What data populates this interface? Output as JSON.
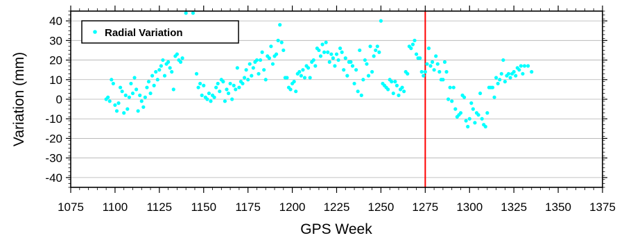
{
  "chart_data": {
    "type": "scatter",
    "xlabel": "GPS Week",
    "ylabel": "Variation (mm)",
    "xlim": [
      1075,
      1375
    ],
    "ylim": [
      -45,
      45
    ],
    "xticks": [
      1075,
      1100,
      1125,
      1150,
      1175,
      1200,
      1225,
      1250,
      1275,
      1300,
      1325,
      1350,
      1375
    ],
    "yticks": [
      -40,
      -30,
      -20,
      -10,
      0,
      10,
      20,
      30,
      40
    ],
    "grid": true,
    "legend": {
      "position": "top-left",
      "entries": [
        "Radial Variation"
      ]
    },
    "vertical_line": {
      "x": 1275,
      "color": "#ff0000"
    },
    "colors": {
      "points": "#00ffff",
      "vline": "#ff0000",
      "grid": "#b0b0b0"
    },
    "series": [
      {
        "name": "Radial Variation",
        "points": [
          [
            1095,
            0
          ],
          [
            1096,
            1
          ],
          [
            1097,
            -1
          ],
          [
            1098,
            10
          ],
          [
            1099,
            8
          ],
          [
            1100,
            -3
          ],
          [
            1101,
            -6
          ],
          [
            1102,
            -2
          ],
          [
            1103,
            6
          ],
          [
            1104,
            4
          ],
          [
            1105,
            -7
          ],
          [
            1106,
            2
          ],
          [
            1107,
            -5
          ],
          [
            1108,
            1
          ],
          [
            1109,
            8
          ],
          [
            1110,
            3
          ],
          [
            1111,
            11
          ],
          [
            1112,
            5
          ],
          [
            1113,
            -6
          ],
          [
            1114,
            2
          ],
          [
            1115,
            -1
          ],
          [
            1116,
            -4
          ],
          [
            1117,
            1
          ],
          [
            1118,
            6
          ],
          [
            1119,
            9
          ],
          [
            1120,
            3
          ],
          [
            1121,
            12
          ],
          [
            1122,
            7
          ],
          [
            1123,
            14
          ],
          [
            1124,
            10
          ],
          [
            1125,
            15
          ],
          [
            1126,
            17
          ],
          [
            1127,
            20
          ],
          [
            1128,
            12
          ],
          [
            1129,
            18
          ],
          [
            1130,
            19
          ],
          [
            1131,
            16
          ],
          [
            1132,
            14
          ],
          [
            1133,
            5
          ],
          [
            1134,
            22
          ],
          [
            1135,
            23
          ],
          [
            1136,
            20
          ],
          [
            1137,
            19
          ],
          [
            1138,
            21
          ],
          [
            1140,
            44
          ],
          [
            1144,
            44
          ],
          [
            1146,
            13
          ],
          [
            1147,
            6
          ],
          [
            1148,
            8
          ],
          [
            1149,
            2
          ],
          [
            1150,
            7
          ],
          [
            1151,
            1
          ],
          [
            1152,
            0
          ],
          [
            1153,
            3
          ],
          [
            1154,
            -1
          ],
          [
            1155,
            2
          ],
          [
            1156,
            1
          ],
          [
            1157,
            6
          ],
          [
            1158,
            8
          ],
          [
            1159,
            4
          ],
          [
            1160,
            10
          ],
          [
            1161,
            9
          ],
          [
            1162,
            -1
          ],
          [
            1163,
            5
          ],
          [
            1164,
            3
          ],
          [
            1165,
            8
          ],
          [
            1166,
            0
          ],
          [
            1167,
            7
          ],
          [
            1168,
            5
          ],
          [
            1169,
            16
          ],
          [
            1170,
            6
          ],
          [
            1171,
            9
          ],
          [
            1172,
            8
          ],
          [
            1173,
            11
          ],
          [
            1174,
            15
          ],
          [
            1175,
            10
          ],
          [
            1176,
            18
          ],
          [
            1177,
            12
          ],
          [
            1178,
            16
          ],
          [
            1179,
            19
          ],
          [
            1180,
            20
          ],
          [
            1181,
            13
          ],
          [
            1182,
            20
          ],
          [
            1183,
            24
          ],
          [
            1184,
            15
          ],
          [
            1185,
            10
          ],
          [
            1186,
            22
          ],
          [
            1187,
            21
          ],
          [
            1188,
            27
          ],
          [
            1189,
            18
          ],
          [
            1190,
            22
          ],
          [
            1191,
            23
          ],
          [
            1192,
            30
          ],
          [
            1193,
            38
          ],
          [
            1194,
            29
          ],
          [
            1195,
            25
          ],
          [
            1196,
            11
          ],
          [
            1197,
            11
          ],
          [
            1198,
            6
          ],
          [
            1199,
            5
          ],
          [
            1200,
            8
          ],
          [
            1201,
            9
          ],
          [
            1202,
            4
          ],
          [
            1203,
            13
          ],
          [
            1204,
            14
          ],
          [
            1205,
            12
          ],
          [
            1206,
            15
          ],
          [
            1207,
            11
          ],
          [
            1208,
            17
          ],
          [
            1209,
            16
          ],
          [
            1210,
            11
          ],
          [
            1211,
            19
          ],
          [
            1212,
            20
          ],
          [
            1213,
            17
          ],
          [
            1214,
            26
          ],
          [
            1215,
            25
          ],
          [
            1216,
            22
          ],
          [
            1217,
            28
          ],
          [
            1218,
            24
          ],
          [
            1219,
            29
          ],
          [
            1220,
            24
          ],
          [
            1221,
            19
          ],
          [
            1222,
            23
          ],
          [
            1223,
            21
          ],
          [
            1224,
            17
          ],
          [
            1225,
            23
          ],
          [
            1226,
            20
          ],
          [
            1227,
            26
          ],
          [
            1228,
            24
          ],
          [
            1229,
            15
          ],
          [
            1230,
            21
          ],
          [
            1231,
            12
          ],
          [
            1232,
            19
          ],
          [
            1233,
            19
          ],
          [
            1234,
            17
          ],
          [
            1235,
            8
          ],
          [
            1236,
            15
          ],
          [
            1237,
            4
          ],
          [
            1238,
            25
          ],
          [
            1239,
            2
          ],
          [
            1240,
            10
          ],
          [
            1241,
            20
          ],
          [
            1242,
            18
          ],
          [
            1243,
            12
          ],
          [
            1244,
            27
          ],
          [
            1245,
            14
          ],
          [
            1246,
            22
          ],
          [
            1247,
            25
          ],
          [
            1248,
            27
          ],
          [
            1249,
            24
          ],
          [
            1250,
            40
          ],
          [
            1251,
            8
          ],
          [
            1252,
            7
          ],
          [
            1253,
            6
          ],
          [
            1254,
            5
          ],
          [
            1255,
            10
          ],
          [
            1256,
            9
          ],
          [
            1257,
            3
          ],
          [
            1258,
            9
          ],
          [
            1259,
            7
          ],
          [
            1260,
            2
          ],
          [
            1261,
            5
          ],
          [
            1262,
            6
          ],
          [
            1263,
            4
          ],
          [
            1264,
            14
          ],
          [
            1265,
            13
          ],
          [
            1266,
            27
          ],
          [
            1267,
            26
          ],
          [
            1268,
            28
          ],
          [
            1269,
            30
          ],
          [
            1270,
            23
          ],
          [
            1271,
            21
          ],
          [
            1272,
            21
          ],
          [
            1273,
            14
          ],
          [
            1274,
            12
          ],
          [
            1275,
            14
          ],
          [
            1276,
            18
          ],
          [
            1277,
            26
          ],
          [
            1278,
            17
          ],
          [
            1279,
            19
          ],
          [
            1280,
            15
          ],
          [
            1281,
            22
          ],
          [
            1282,
            18
          ],
          [
            1283,
            14
          ],
          [
            1284,
            10
          ],
          [
            1285,
            10
          ],
          [
            1286,
            19
          ],
          [
            1287,
            14
          ],
          [
            1288,
            0
          ],
          [
            1289,
            6
          ],
          [
            1290,
            -1
          ],
          [
            1291,
            6
          ],
          [
            1292,
            -5
          ],
          [
            1293,
            -9
          ],
          [
            1294,
            -8
          ],
          [
            1295,
            -7
          ],
          [
            1296,
            2
          ],
          [
            1297,
            1
          ],
          [
            1298,
            -11
          ],
          [
            1299,
            -14
          ],
          [
            1300,
            -10
          ],
          [
            1301,
            -2
          ],
          [
            1302,
            -5
          ],
          [
            1303,
            -12
          ],
          [
            1304,
            -7
          ],
          [
            1305,
            -8
          ],
          [
            1306,
            3
          ],
          [
            1307,
            -10
          ],
          [
            1308,
            -13
          ],
          [
            1309,
            -14
          ],
          [
            1310,
            -7
          ],
          [
            1311,
            6
          ],
          [
            1312,
            6
          ],
          [
            1313,
            6
          ],
          [
            1314,
            1
          ],
          [
            1315,
            11
          ],
          [
            1316,
            8
          ],
          [
            1317,
            10
          ],
          [
            1318,
            13
          ],
          [
            1319,
            20
          ],
          [
            1320,
            9
          ],
          [
            1321,
            12
          ],
          [
            1322,
            13
          ],
          [
            1323,
            11
          ],
          [
            1324,
            13
          ],
          [
            1325,
            14
          ],
          [
            1326,
            12
          ],
          [
            1327,
            16
          ],
          [
            1328,
            15
          ],
          [
            1329,
            17
          ],
          [
            1330,
            13
          ],
          [
            1331,
            17
          ],
          [
            1333,
            17
          ],
          [
            1335,
            14
          ]
        ]
      }
    ]
  }
}
